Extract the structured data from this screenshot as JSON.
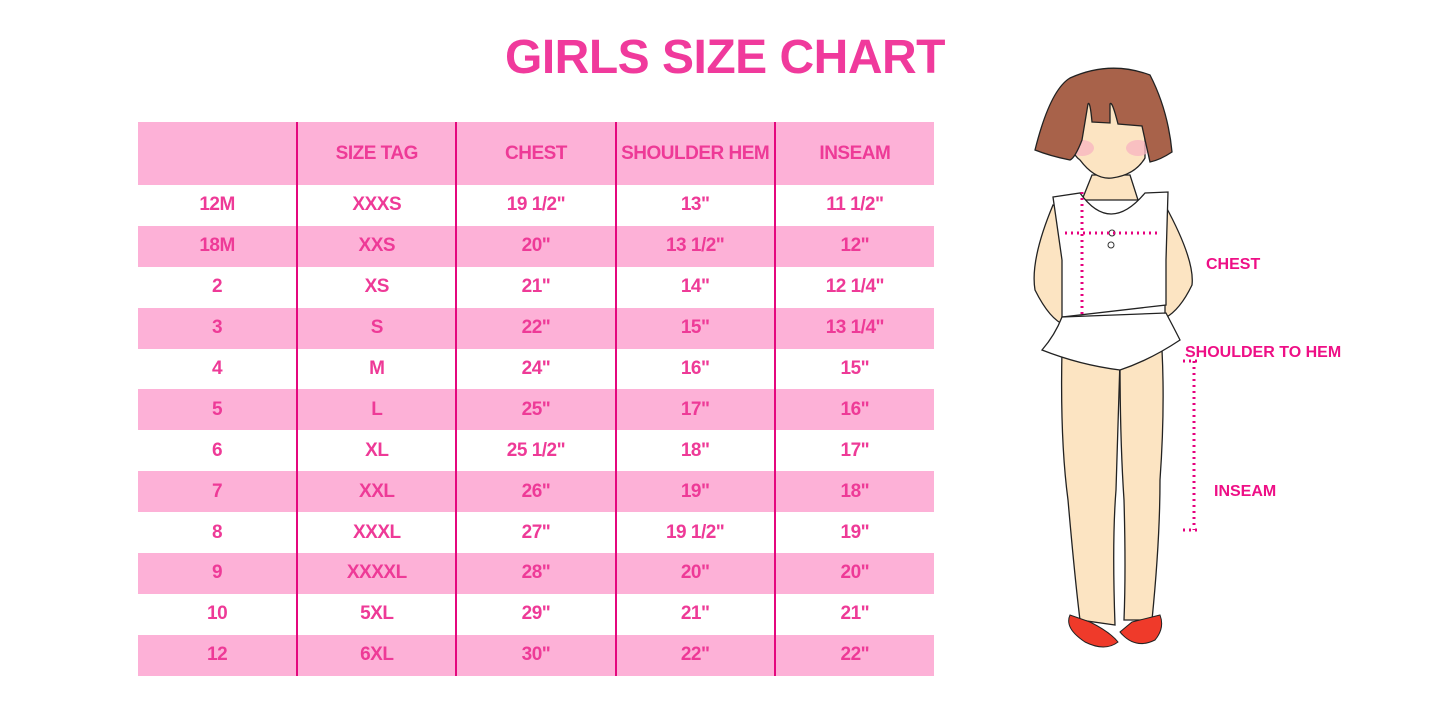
{
  "title": "GIRLS SIZE CHART",
  "colors": {
    "accent": "#f03a9c",
    "stripe": "#fdb1d7",
    "divider": "#e4087e"
  },
  "table": {
    "headers": [
      "",
      "SIZE TAG",
      "CHEST",
      "SHOULDER HEM",
      "INSEAM"
    ],
    "rows": [
      [
        "12M",
        "XXXS",
        "19 1/2\"",
        "13\"",
        "11 1/2\""
      ],
      [
        "18M",
        "XXS",
        "20\"",
        "13 1/2\"",
        "12\""
      ],
      [
        "2",
        "XS",
        "21\"",
        "14\"",
        "12 1/4\""
      ],
      [
        "3",
        "S",
        "22\"",
        "15\"",
        "13 1/4\""
      ],
      [
        "4",
        "M",
        "24\"",
        "16\"",
        "15\""
      ],
      [
        "5",
        "L",
        "25\"",
        "17\"",
        "16\""
      ],
      [
        "6",
        "XL",
        "25 1/2\"",
        "18\"",
        "17\""
      ],
      [
        "7",
        "XXL",
        "26\"",
        "19\"",
        "18\""
      ],
      [
        "8",
        "XXXL",
        "27\"",
        "19 1/2\"",
        "19\""
      ],
      [
        "9",
        "XXXXL",
        "28\"",
        "20\"",
        "20\""
      ],
      [
        "10",
        "5XL",
        "29\"",
        "21\"",
        "21\""
      ],
      [
        "12",
        "6XL",
        "30\"",
        "22\"",
        "22\""
      ]
    ]
  },
  "figure": {
    "labels": {
      "chest": "CHEST",
      "shoulder_to_hem": "SHOULDER TO HEM",
      "inseam": "INSEAM"
    }
  }
}
